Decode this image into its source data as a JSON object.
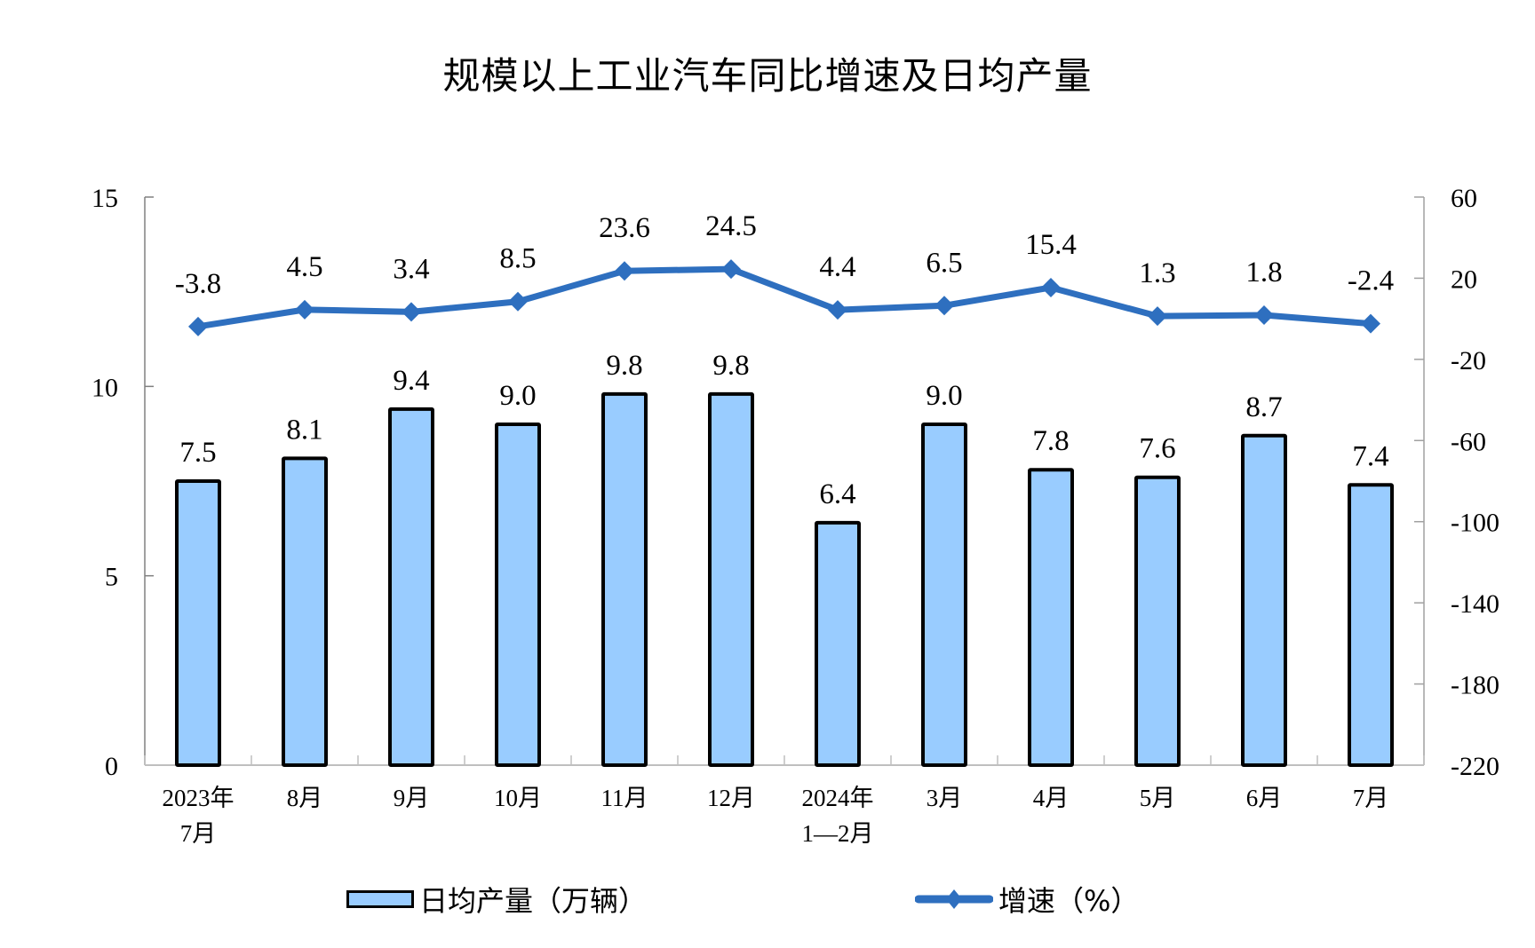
{
  "title": "规模以上工业汽车同比增速及日均产量",
  "colors": {
    "bar_fill": "#99ccff",
    "bar_stroke": "#000000",
    "line": "#2e6fbf",
    "axis": "#bfbfbf"
  },
  "legend": {
    "bar_label": "日均产量（万辆）",
    "line_label": "增速（%）"
  },
  "chart_data": {
    "type": "bar+line",
    "title": "规模以上工业汽车同比增速及日均产量",
    "categories": [
      "2023年\n7月",
      "8月",
      "9月",
      "10月",
      "11月",
      "12月",
      "2024年\n1—2月",
      "3月",
      "4月",
      "5月",
      "6月",
      "7月"
    ],
    "series": [
      {
        "name": "日均产量（万辆）",
        "type": "bar",
        "axis": "left",
        "values": [
          7.5,
          8.1,
          9.4,
          9.0,
          9.8,
          9.8,
          6.4,
          9.0,
          7.8,
          7.6,
          8.7,
          7.4
        ]
      },
      {
        "name": "增速（%）",
        "type": "line",
        "axis": "right",
        "marker": "diamond",
        "values": [
          -3.8,
          4.5,
          3.4,
          8.5,
          23.6,
          24.5,
          4.4,
          6.5,
          15.4,
          1.3,
          1.8,
          -2.4
        ]
      }
    ],
    "left_axis": {
      "ylim": [
        0,
        15
      ],
      "ticks": [
        0,
        5,
        10,
        15
      ]
    },
    "right_axis": {
      "ylim": [
        -220,
        60
      ],
      "ticks": [
        60,
        20,
        -20,
        -60,
        -100,
        -140,
        -180,
        -220
      ]
    },
    "xlabel": "",
    "ylabel": "",
    "grid": false,
    "legend_position": "bottom"
  }
}
